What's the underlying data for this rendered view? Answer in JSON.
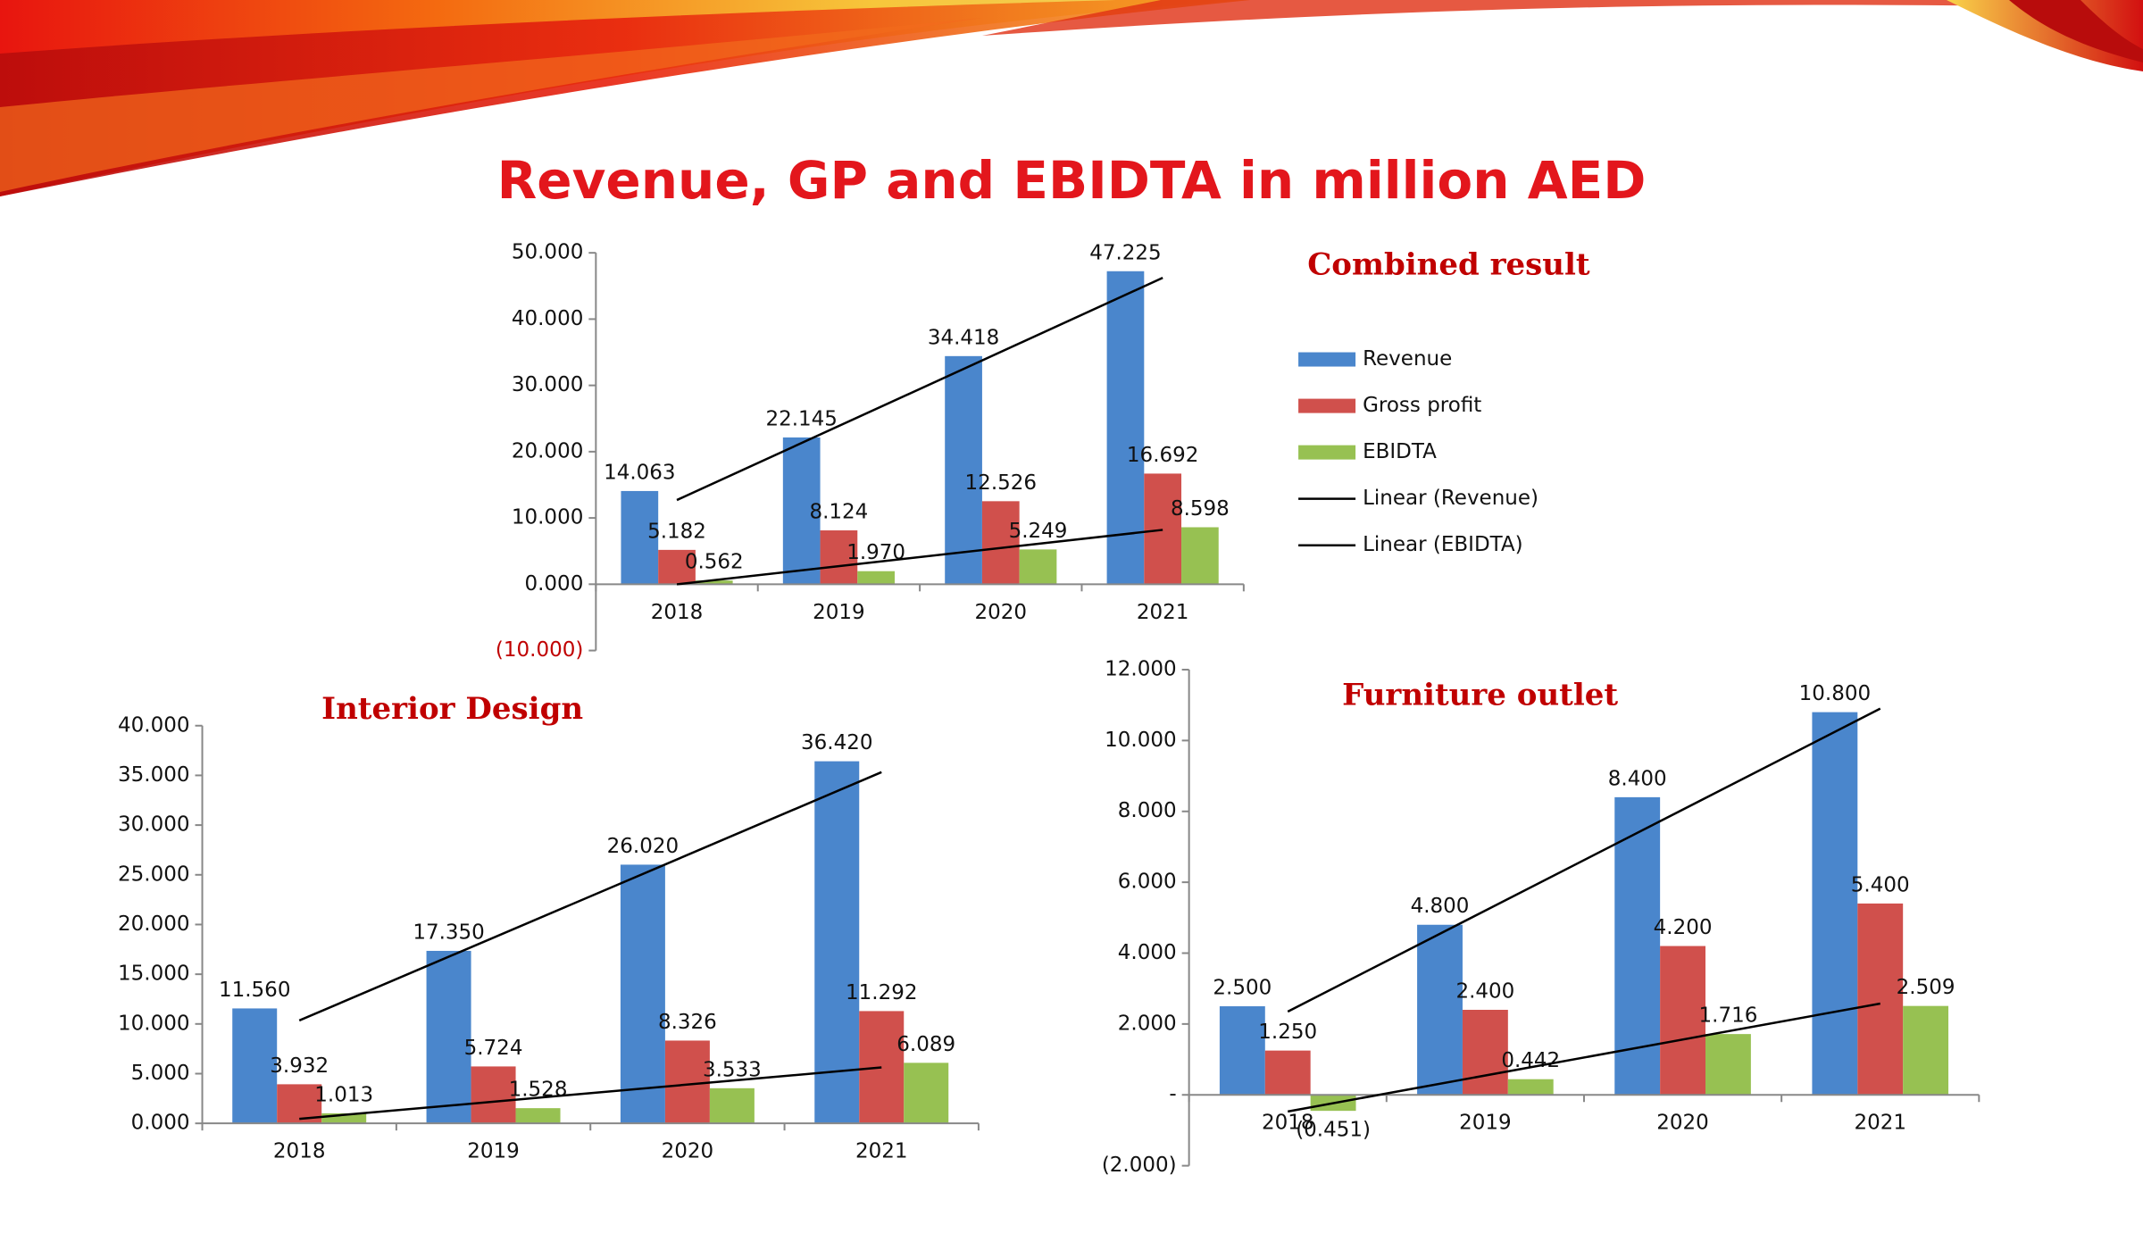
{
  "title": "Revenue, GP and EBIDTA in million AED",
  "chart_data": [
    {
      "type": "bar",
      "title": "Combined result",
      "categories": [
        "2018",
        "2019",
        "2020",
        "2021"
      ],
      "series": [
        {
          "name": "Revenue",
          "color": "#4a86cc",
          "values": [
            14.063,
            22.145,
            34.418,
            47.225
          ],
          "value_labels": [
            "14.063",
            "22.145",
            "34.418",
            "47.225"
          ]
        },
        {
          "name": "Gross profit",
          "color": "#d0504c",
          "values": [
            5.182,
            8.124,
            12.526,
            16.692
          ],
          "value_labels": [
            "5.182",
            "8.124",
            "12.526",
            "16.692"
          ]
        },
        {
          "name": "EBIDTA",
          "color": "#97c152",
          "values": [
            0.562,
            1.97,
            5.249,
            8.598
          ],
          "value_labels": [
            "0.562",
            "1.970",
            "5.249",
            "8.598"
          ]
        }
      ],
      "trendline_series": [
        0,
        2
      ],
      "trendline_names": [
        "Linear (Revenue)",
        "Linear (EBIDTA)"
      ],
      "ylim": [
        -10,
        50
      ],
      "yticks": [
        {
          "value": -10,
          "label": "(10.000)"
        },
        {
          "value": 0,
          "label": "0.000"
        },
        {
          "value": 10,
          "label": "10.000"
        },
        {
          "value": 20,
          "label": "20.000"
        },
        {
          "value": 30,
          "label": "30.000"
        },
        {
          "value": 40,
          "label": "40.000"
        },
        {
          "value": 50,
          "label": "50.000"
        }
      ],
      "negative_tick_color": "#c00000",
      "legend": "right"
    },
    {
      "type": "bar",
      "title": "Interior Design",
      "categories": [
        "2018",
        "2019",
        "2020",
        "2021"
      ],
      "series": [
        {
          "name": "Revenue",
          "color": "#4a86cc",
          "values": [
            11.56,
            17.35,
            26.02,
            36.42
          ],
          "value_labels": [
            "11.560",
            "17.350",
            "26.020",
            "36.420"
          ]
        },
        {
          "name": "Gross profit",
          "color": "#d0504c",
          "values": [
            3.932,
            5.724,
            8.326,
            11.292
          ],
          "value_labels": [
            "3.932",
            "5.724",
            "8.326",
            "11.292"
          ]
        },
        {
          "name": "EBIDTA",
          "color": "#97c152",
          "values": [
            1.013,
            1.528,
            3.533,
            6.089
          ],
          "value_labels": [
            "1.013",
            "1.528",
            "3.533",
            "6.089"
          ]
        }
      ],
      "trendline_series": [
        0,
        2
      ],
      "ylim": [
        0,
        40
      ],
      "yticks": [
        {
          "value": 0,
          "label": "0.000"
        },
        {
          "value": 5,
          "label": "5.000"
        },
        {
          "value": 10,
          "label": "10.000"
        },
        {
          "value": 15,
          "label": "15.000"
        },
        {
          "value": 20,
          "label": "20.000"
        },
        {
          "value": 25,
          "label": "25.000"
        },
        {
          "value": 30,
          "label": "30.000"
        },
        {
          "value": 35,
          "label": "35.000"
        },
        {
          "value": 40,
          "label": "40.000"
        }
      ],
      "legend": false
    },
    {
      "type": "bar",
      "title": "Furniture outlet",
      "categories": [
        "2018",
        "2019",
        "2020",
        "2021"
      ],
      "series": [
        {
          "name": "Revenue",
          "color": "#4a86cc",
          "values": [
            2.5,
            4.8,
            8.4,
            10.8
          ],
          "value_labels": [
            "2.500",
            "4.800",
            "8.400",
            "10.800"
          ]
        },
        {
          "name": "Gross profit",
          "color": "#d0504c",
          "values": [
            1.25,
            2.4,
            4.2,
            5.4
          ],
          "value_labels": [
            "1.250",
            "2.400",
            "4.200",
            "5.400"
          ]
        },
        {
          "name": "EBIDTA",
          "color": "#97c152",
          "values": [
            -0.451,
            0.442,
            1.716,
            2.509
          ],
          "value_labels": [
            "(0.451)",
            "0.442",
            "1.716",
            "2.509"
          ]
        }
      ],
      "trendline_series": [
        0,
        2
      ],
      "ylim": [
        -2,
        12
      ],
      "yticks": [
        {
          "value": -2,
          "label": "(2.000)"
        },
        {
          "value": 0,
          "label": "-"
        },
        {
          "value": 2,
          "label": "2.000"
        },
        {
          "value": 4,
          "label": "4.000"
        },
        {
          "value": 6,
          "label": "6.000"
        },
        {
          "value": 8,
          "label": "8.000"
        },
        {
          "value": 10,
          "label": "10.000"
        },
        {
          "value": 12,
          "label": "12.000"
        }
      ],
      "legend": false
    }
  ]
}
